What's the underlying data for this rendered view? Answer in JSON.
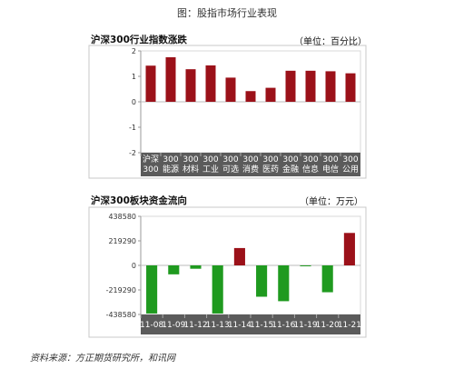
{
  "figure_title": "图：股指市场行业表现",
  "source_note": "资料来源：方正期货研究所，和讯网",
  "chart_data": [
    {
      "type": "bar",
      "title": "沪深300行业指数涨跌",
      "unit": "（单位：百分比）",
      "ylim": [
        -2,
        2
      ],
      "yticks": [
        -2,
        -1,
        0,
        1,
        2
      ],
      "ytick_labels": [
        "-2",
        "-1",
        "0",
        "1",
        "2"
      ],
      "categories": [
        [
          "沪深",
          "300"
        ],
        [
          "300",
          "能源"
        ],
        [
          "300",
          "材料"
        ],
        [
          "300",
          "工业"
        ],
        [
          "300",
          "可选"
        ],
        [
          "300",
          "消费"
        ],
        [
          "300",
          "医药"
        ],
        [
          "300",
          "金融"
        ],
        [
          "300",
          "信息"
        ],
        [
          "300",
          "电信"
        ],
        [
          "300",
          "公用"
        ]
      ],
      "values": [
        1.42,
        1.75,
        1.28,
        1.43,
        0.95,
        0.42,
        0.55,
        1.22,
        1.22,
        1.2,
        1.12
      ],
      "colors": {
        "positive": "#9b1119",
        "negative": "#9b1119"
      },
      "grid": false
    },
    {
      "type": "bar",
      "title": "沪深300板块资金流向",
      "unit": "（单位：万元）",
      "ylim": [
        -438580,
        438580
      ],
      "yticks": [
        -438580,
        -219290,
        0,
        219290,
        438580
      ],
      "ytick_labels": [
        "-438580",
        "-219290",
        "0",
        "219290",
        "438580"
      ],
      "categories": [
        "11-08",
        "11-09",
        "11-12",
        "11-13",
        "11-14",
        "11-15",
        "11-16",
        "11-19",
        "11-20",
        "11-21"
      ],
      "values": [
        -430000,
        -80000,
        -30000,
        -430000,
        155000,
        -280000,
        -320000,
        -8000,
        -240000,
        290000
      ],
      "colors": {
        "positive": "#9b1119",
        "negative": "#1f9a1f"
      },
      "grid": false
    }
  ]
}
